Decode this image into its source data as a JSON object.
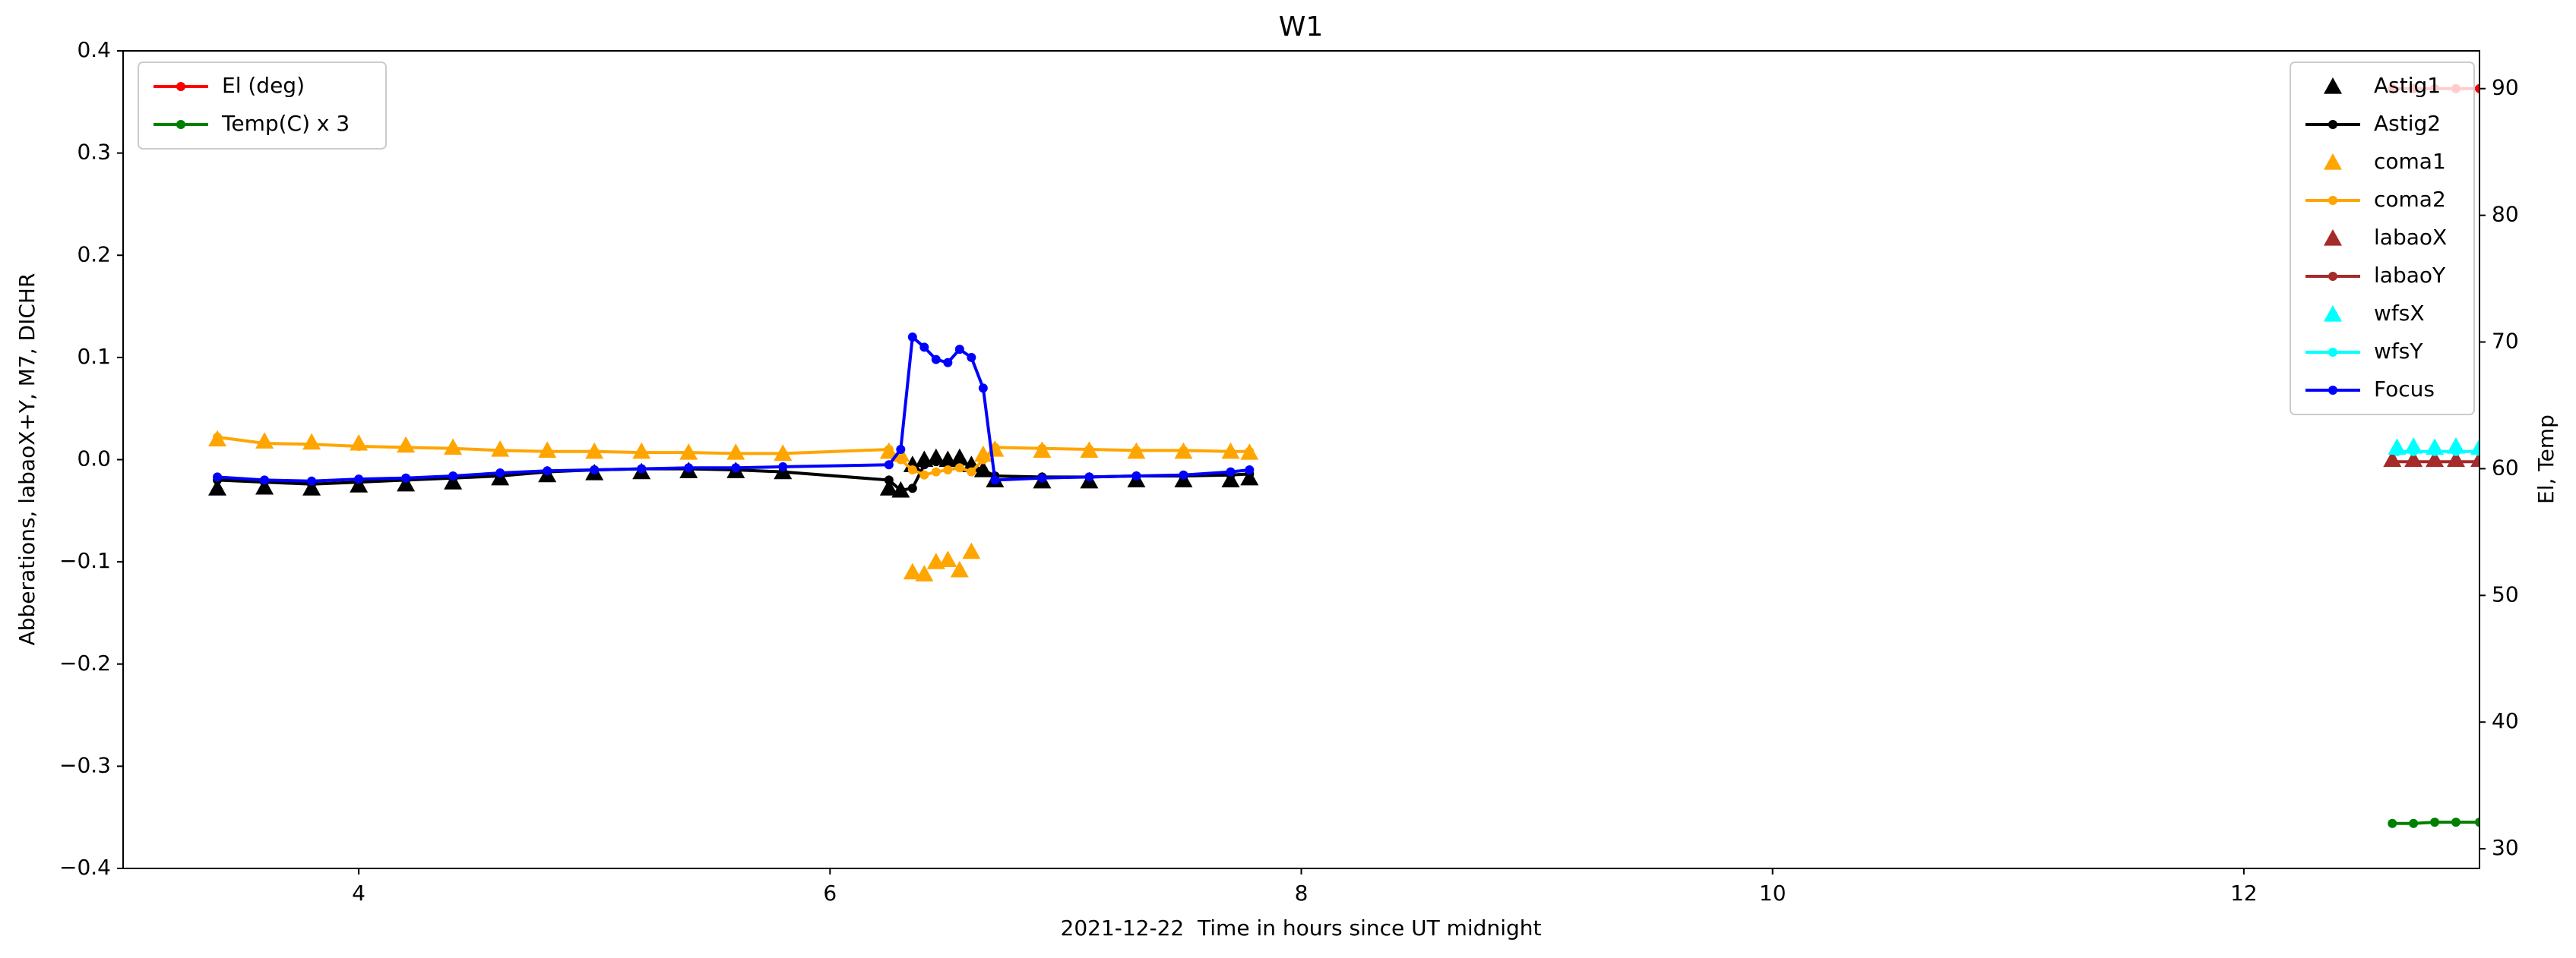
{
  "chart_data": {
    "type": "line",
    "title": "W1",
    "x_label": "2021-12-22  Time in hours since UT midnight",
    "y_label": "Abberations, labaoX+Y, M7, DICHR",
    "y2_label": "El, Temp",
    "xlim": [
      3.0,
      13.0
    ],
    "xticks": [
      4,
      6,
      8,
      10,
      12
    ],
    "ylim": [
      -0.4,
      0.4
    ],
    "yticks": [
      {
        "value": -0.4,
        "label": "−0.4"
      },
      {
        "value": -0.3,
        "label": "−0.3"
      },
      {
        "value": -0.2,
        "label": "−0.2"
      },
      {
        "value": -0.1,
        "label": "−0.1"
      },
      {
        "value": 0.0,
        "label": "0.0"
      },
      {
        "value": 0.1,
        "label": "0.1"
      },
      {
        "value": 0.2,
        "label": "0.2"
      },
      {
        "value": 0.3,
        "label": "0.3"
      },
      {
        "value": 0.4,
        "label": "0.4"
      }
    ],
    "y2lim": [
      28.45,
      92.98
    ],
    "y2ticks": [
      30,
      40,
      50,
      60,
      70,
      80,
      90
    ],
    "grid": false,
    "legend": "upper right",
    "legend2": "upper left",
    "x": [
      3.4,
      3.6,
      3.8,
      4.0,
      4.2,
      4.4,
      4.6,
      4.8,
      5.0,
      5.2,
      5.4,
      5.6,
      5.8,
      6.25,
      6.3,
      6.35,
      6.4,
      6.45,
      6.5,
      6.55,
      6.6,
      6.65,
      6.7,
      6.9,
      7.1,
      7.3,
      7.5,
      7.7,
      7.78
    ],
    "series": [
      {
        "name": "Astig1",
        "color": "#000000",
        "style": "triangle",
        "axis": "y",
        "values": [
          -0.028,
          -0.027,
          -0.028,
          -0.025,
          -0.024,
          -0.022,
          -0.018,
          -0.015,
          -0.013,
          -0.012,
          -0.011,
          -0.011,
          -0.012,
          -0.028,
          -0.03,
          -0.005,
          0.0,
          0.002,
          0.0,
          0.002,
          -0.005,
          -0.01,
          -0.02,
          -0.021,
          -0.021,
          -0.02,
          -0.02,
          -0.02,
          -0.018
        ]
      },
      {
        "name": "Astig2",
        "color": "#000000",
        "style": "line",
        "axis": "y",
        "values": [
          -0.02,
          -0.022,
          -0.024,
          -0.022,
          -0.02,
          -0.018,
          -0.016,
          -0.012,
          -0.01,
          -0.009,
          -0.009,
          -0.01,
          -0.012,
          -0.02,
          -0.03,
          -0.028,
          -0.005,
          -0.002,
          -0.004,
          -0.003,
          -0.006,
          -0.01,
          -0.016,
          -0.017,
          -0.017,
          -0.016,
          -0.016,
          -0.015,
          -0.014
        ]
      },
      {
        "name": "coma1",
        "color": "#ffa500",
        "style": "triangle",
        "axis": "y",
        "values": [
          0.02,
          0.018,
          0.017,
          0.016,
          0.014,
          0.012,
          0.01,
          0.009,
          0.008,
          0.008,
          0.007,
          0.007,
          0.006,
          0.008,
          0.005,
          -0.11,
          -0.112,
          -0.1,
          -0.098,
          -0.108,
          -0.09,
          0.005,
          0.01,
          0.009,
          0.009,
          0.008,
          0.008,
          0.008,
          0.007
        ]
      },
      {
        "name": "coma2",
        "color": "#ffa500",
        "style": "line",
        "axis": "y",
        "values": [
          0.022,
          0.016,
          0.015,
          0.013,
          0.012,
          0.011,
          0.009,
          0.008,
          0.008,
          0.007,
          0.007,
          0.006,
          0.006,
          0.01,
          0.0,
          -0.01,
          -0.015,
          -0.012,
          -0.01,
          -0.008,
          -0.012,
          0.0,
          0.012,
          0.011,
          0.01,
          0.009,
          0.009,
          0.008,
          0.008
        ]
      },
      {
        "name": "labaoX",
        "color": "#a52a2a",
        "style": "triangle",
        "axis": "y",
        "x": [
          12.63,
          12.72,
          12.81,
          12.9,
          13.0
        ],
        "values": [
          0.0,
          0.0,
          0.0,
          0.0,
          0.0
        ]
      },
      {
        "name": "labaoY",
        "color": "#a52a2a",
        "style": "line",
        "axis": "y",
        "x": [
          12.63,
          12.72,
          12.81,
          12.9,
          13.0
        ],
        "values": [
          -0.002,
          -0.002,
          -0.002,
          -0.002,
          -0.002
        ]
      },
      {
        "name": "wfsX",
        "color": "#00ffff",
        "style": "triangle",
        "axis": "y",
        "x": [
          12.65,
          12.72,
          12.81,
          12.9,
          13.0
        ],
        "values": [
          0.012,
          0.013,
          0.012,
          0.013,
          0.012
        ]
      },
      {
        "name": "wfsY",
        "color": "#00ffff",
        "style": "line",
        "axis": "y",
        "x": [
          12.65,
          12.72,
          12.81,
          12.9,
          13.0
        ],
        "values": [
          0.008,
          0.008,
          0.008,
          0.008,
          0.008
        ]
      },
      {
        "name": "Focus",
        "color": "#0000ff",
        "style": "line",
        "axis": "y",
        "values": [
          -0.017,
          -0.02,
          -0.021,
          -0.019,
          -0.018,
          -0.016,
          -0.013,
          -0.011,
          -0.01,
          -0.009,
          -0.008,
          -0.008,
          -0.007,
          -0.005,
          0.01,
          0.12,
          0.11,
          0.098,
          0.095,
          0.108,
          0.1,
          0.07,
          -0.02,
          -0.018,
          -0.017,
          -0.016,
          -0.015,
          -0.012,
          -0.01
        ]
      },
      {
        "name": "El (deg)",
        "color": "#ff0000",
        "style": "line",
        "axis": "y2",
        "x": [
          12.63,
          12.72,
          12.81,
          12.9,
          13.0
        ],
        "values": [
          90,
          90,
          90,
          90,
          90
        ]
      },
      {
        "name": "Temp(C) x 3",
        "color": "#008000",
        "style": "line",
        "axis": "y2",
        "x": [
          12.63,
          12.72,
          12.81,
          12.9,
          13.0
        ],
        "values": [
          32.0,
          32.0,
          32.1,
          32.1,
          32.1
        ]
      }
    ]
  }
}
